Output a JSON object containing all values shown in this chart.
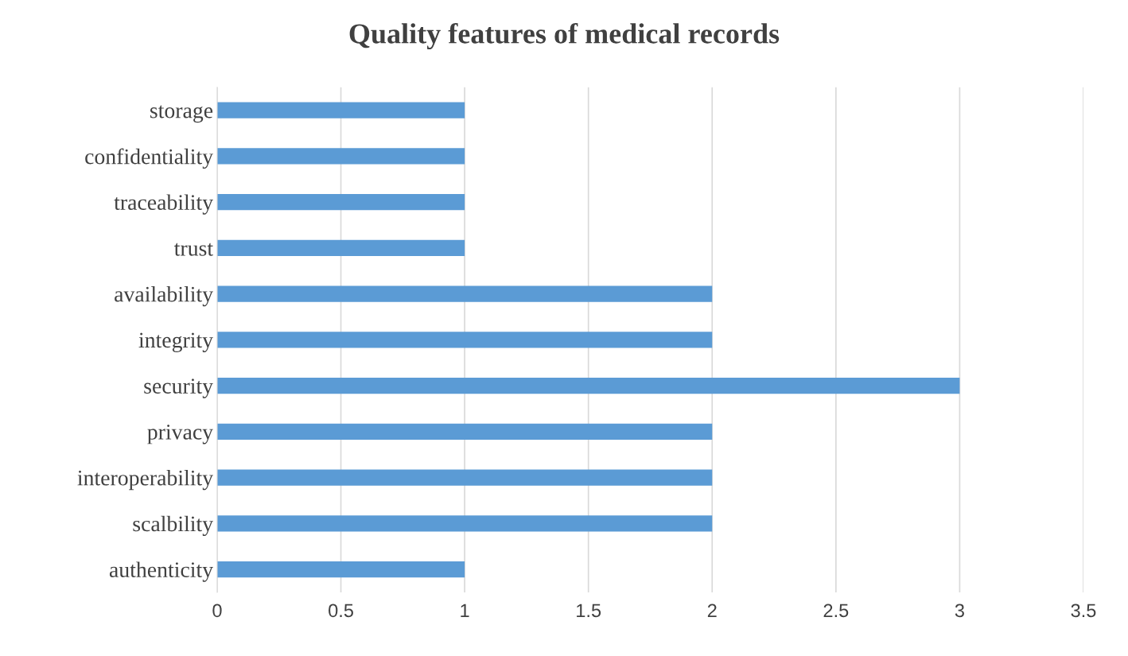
{
  "chart_data": {
    "type": "bar",
    "orientation": "horizontal",
    "title": "Quality features of medical records",
    "categories": [
      "storage",
      "confidentiality",
      "traceability",
      "trust",
      "availability",
      "integrity",
      "security",
      "privacy",
      "interoperability",
      "scalbility",
      "authenticity"
    ],
    "values": [
      1,
      1,
      1,
      1,
      2,
      2,
      3,
      2,
      2,
      2,
      1
    ],
    "color": "#5b9bd5",
    "xlim": [
      0,
      3.5
    ],
    "xticks": [
      0,
      0.5,
      1,
      1.5,
      2,
      2.5,
      3,
      3.5
    ],
    "grid": "x"
  }
}
